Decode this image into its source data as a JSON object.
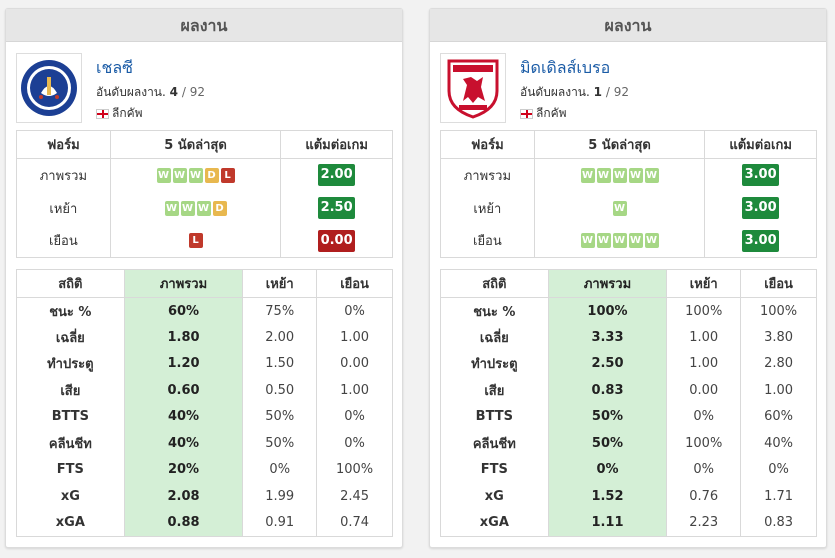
{
  "teams": [
    {
      "header": "ผลงาน",
      "name": "เชลซี",
      "rank_prefix": "อันดับผลงาน.",
      "rank": "4",
      "rank_total": "/ 92",
      "league": "ลีกคัพ",
      "logo": "chelsea-crest",
      "form_headers": [
        "ฟอร์ม",
        "5 นัดล่าสุด",
        "แต้มต่อเกม"
      ],
      "form_rows": [
        {
          "label": "ภาพรวม",
          "results": [
            "W",
            "W",
            "W",
            "D",
            "L"
          ],
          "ppg": "2.00",
          "ppg_status": "good"
        },
        {
          "label": "เหย้า",
          "results": [
            "W",
            "W",
            "W",
            "D"
          ],
          "ppg": "2.50",
          "ppg_status": "good"
        },
        {
          "label": "เยือน",
          "results": [
            "L"
          ],
          "ppg": "0.00",
          "ppg_status": "bad"
        }
      ],
      "stats_headers": [
        "สถิติ",
        "ภาพรวม",
        "เหย้า",
        "เยือน"
      ],
      "stats_rows": [
        [
          "ชนะ %",
          "60%",
          "75%",
          "0%"
        ],
        [
          "เฉลี่ย",
          "1.80",
          "2.00",
          "1.00"
        ],
        [
          "ทำประตู",
          "1.20",
          "1.50",
          "0.00"
        ],
        [
          "เสีย",
          "0.60",
          "0.50",
          "1.00"
        ],
        [
          "BTTS",
          "40%",
          "50%",
          "0%"
        ],
        [
          "คลีนชีท",
          "40%",
          "50%",
          "0%"
        ],
        [
          "FTS",
          "20%",
          "0%",
          "100%"
        ],
        [
          "xG",
          "2.08",
          "1.99",
          "2.45"
        ],
        [
          "xGA",
          "0.88",
          "0.91",
          "0.74"
        ]
      ]
    },
    {
      "header": "ผลงาน",
      "name": "มิดเดิลส์เบรอ",
      "rank_prefix": "อันดับผลงาน.",
      "rank": "1",
      "rank_total": "/ 92",
      "league": "ลีกคัพ",
      "logo": "middlesbrough-crest",
      "form_headers": [
        "ฟอร์ม",
        "5 นัดล่าสุด",
        "แต้มต่อเกม"
      ],
      "form_rows": [
        {
          "label": "ภาพรวม",
          "results": [
            "W",
            "W",
            "W",
            "W",
            "W"
          ],
          "ppg": "3.00",
          "ppg_status": "good"
        },
        {
          "label": "เหย้า",
          "results": [
            "W"
          ],
          "ppg": "3.00",
          "ppg_status": "good"
        },
        {
          "label": "เยือน",
          "results": [
            "W",
            "W",
            "W",
            "W",
            "W"
          ],
          "ppg": "3.00",
          "ppg_status": "good"
        }
      ],
      "stats_headers": [
        "สถิติ",
        "ภาพรวม",
        "เหย้า",
        "เยือน"
      ],
      "stats_rows": [
        [
          "ชนะ %",
          "100%",
          "100%",
          "100%"
        ],
        [
          "เฉลี่ย",
          "3.33",
          "1.00",
          "3.80"
        ],
        [
          "ทำประตู",
          "2.50",
          "1.00",
          "2.80"
        ],
        [
          "เสีย",
          "0.83",
          "0.00",
          "1.00"
        ],
        [
          "BTTS",
          "50%",
          "0%",
          "60%"
        ],
        [
          "คลีนชีท",
          "50%",
          "100%",
          "40%"
        ],
        [
          "FTS",
          "0%",
          "0%",
          "0%"
        ],
        [
          "xG",
          "1.52",
          "0.76",
          "1.71"
        ],
        [
          "xGA",
          "1.11",
          "2.23",
          "0.83"
        ]
      ]
    }
  ],
  "colors": {
    "win": "#a6d785",
    "draw": "#e8b84f",
    "loss": "#c0392b",
    "ppg_good": "#1e8a3c",
    "ppg_bad": "#b01e1e",
    "highlight": "#d4efd6",
    "team_name": "#1a5ba6"
  }
}
